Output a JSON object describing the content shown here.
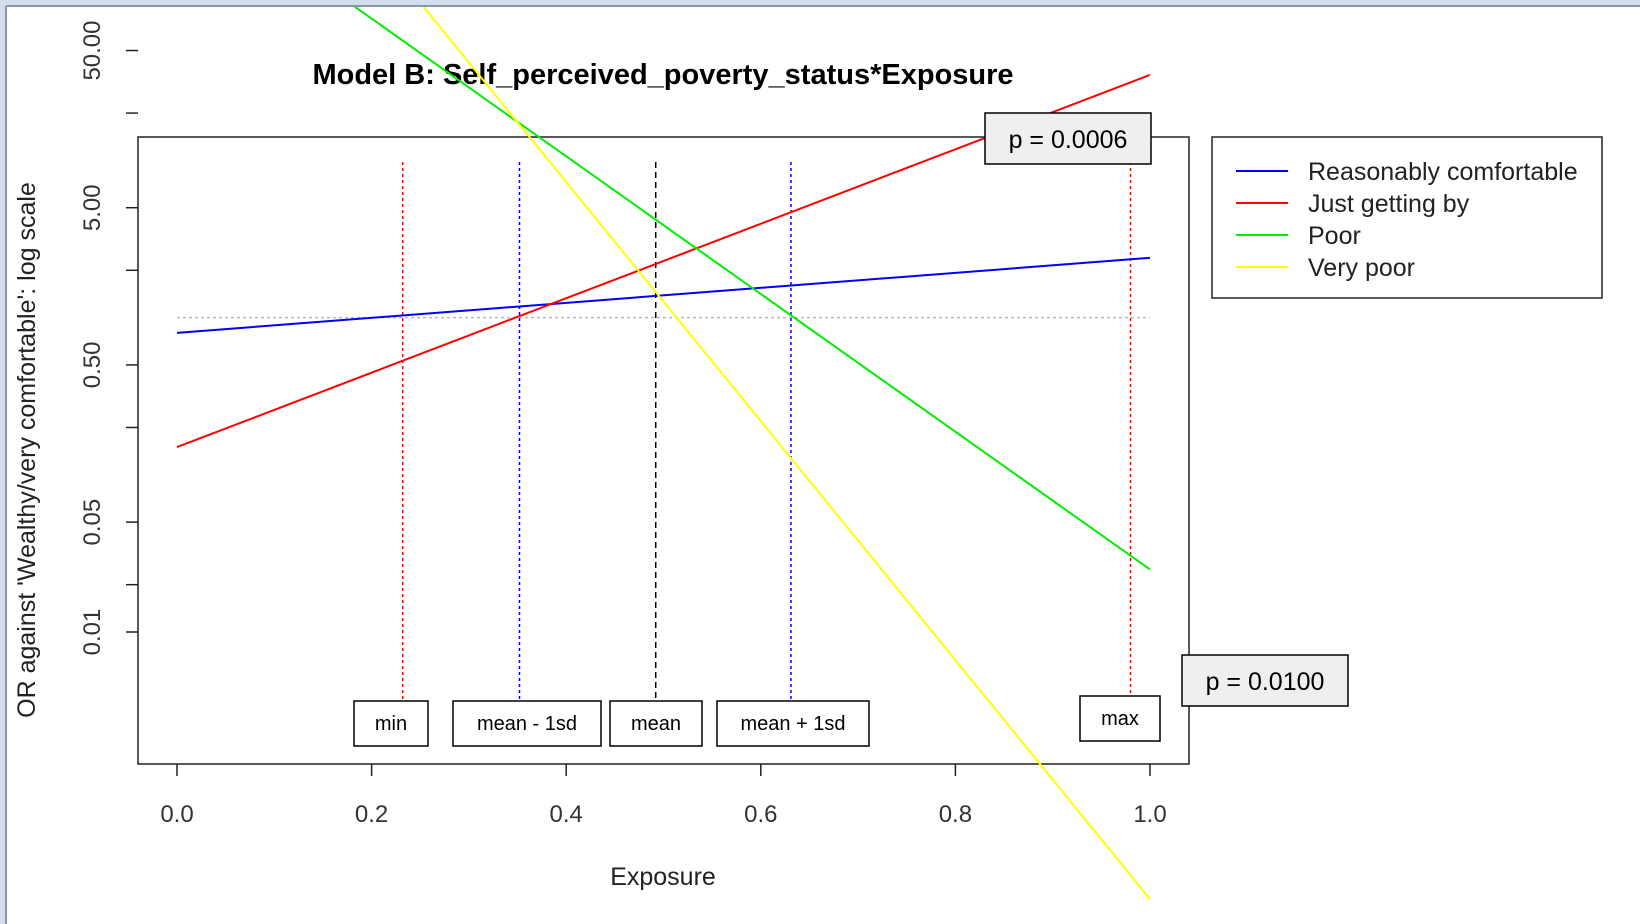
{
  "chart_data": {
    "type": "line",
    "title": "Model B: Self_perceived_poverty_status*Exposure",
    "xlabel": "Exposure",
    "ylabel": "OR against 'Wealthy/very comfortable': log scale",
    "xlim": [
      0,
      1
    ],
    "ylim": [
      0.01,
      100
    ],
    "y_scale": "log",
    "x_ticks": [
      0.0,
      0.2,
      0.4,
      0.6,
      0.8,
      1.0
    ],
    "x_tick_labels": [
      "0.0",
      "0.2",
      "0.4",
      "0.6",
      "0.8",
      "1.0"
    ],
    "y_ticks_labeled": [
      0.01,
      0.05,
      0.5,
      5,
      50
    ],
    "y_tick_labels": [
      "0.01",
      "0.05",
      "0.50",
      "5.00",
      "50.00"
    ],
    "y_ticks_unlabeled": [
      0.02,
      0.2,
      2,
      20
    ],
    "legend_position": "top-right-outside",
    "series": [
      {
        "name": "Reasonably comfortable",
        "color": "#0000ff",
        "x": [
          0,
          1
        ],
        "y": [
          0.8,
          2.4
        ]
      },
      {
        "name": "Just getting by",
        "color": "#ff0000",
        "x": [
          0,
          1
        ],
        "y": [
          0.15,
          35
        ]
      },
      {
        "name": "Poor",
        "color": "#00ee00",
        "x": [
          0,
          1
        ],
        "y": [
          600,
          0.025
        ]
      },
      {
        "name": "Very poor",
        "color": "#ffff00",
        "x": [
          0,
          1
        ],
        "y": [
          8000,
          0.0002
        ]
      }
    ],
    "reference_line": {
      "y": 1,
      "color": "#bbbbbb"
    },
    "vertical_markers": [
      {
        "label": "min",
        "x": 0.232,
        "color": "#ff0000"
      },
      {
        "label": "mean - 1sd",
        "x": 0.352,
        "color": "#0000ff"
      },
      {
        "label": "mean",
        "x": 0.492,
        "color": "#000000"
      },
      {
        "label": "mean + 1sd",
        "x": 0.631,
        "color": "#0000ff"
      },
      {
        "label": "max",
        "x": 0.98,
        "color": "#ff0000"
      }
    ],
    "annotations": [
      {
        "text": "p = 0.0006",
        "near_series": "Just getting by"
      },
      {
        "text": "p = 0.0100",
        "near_series": "Poor"
      }
    ]
  }
}
